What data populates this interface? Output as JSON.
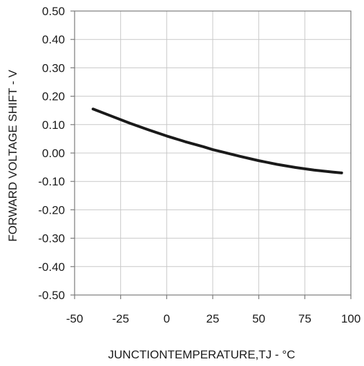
{
  "chart_data": {
    "type": "line",
    "title": "",
    "xlabel": "JUNCTIONTEMPERATURE,TJ - °C",
    "ylabel": "FORWARD VOLTAGE SHIFT - V",
    "xlim": [
      -50,
      100
    ],
    "ylim": [
      -0.5,
      0.5
    ],
    "x_ticks": [
      -50,
      -25,
      0,
      25,
      50,
      75,
      100
    ],
    "x_tick_labels": [
      "-50",
      "-25",
      "0",
      "25",
      "50",
      "75",
      "100"
    ],
    "y_ticks": [
      0.5,
      0.4,
      0.3,
      0.2,
      0.1,
      0.0,
      -0.1,
      -0.2,
      -0.3,
      -0.4,
      -0.5
    ],
    "y_tick_labels": [
      "0.50",
      "0.40",
      "0.30",
      "0.20",
      "0.10",
      "0.00",
      "-0.10",
      "-0.20",
      "-0.30",
      "-0.40",
      "-0.50"
    ],
    "grid": true,
    "legend": "none",
    "series": [
      {
        "color": "#1a1a1a",
        "x": [
          -40,
          -30,
          -20,
          -10,
          0,
          10,
          20,
          25,
          30,
          40,
          50,
          60,
          70,
          80,
          90,
          95
        ],
        "y": [
          0.155,
          0.13,
          0.105,
          0.082,
          0.06,
          0.04,
          0.022,
          0.012,
          0.004,
          -0.012,
          -0.027,
          -0.04,
          -0.051,
          -0.06,
          -0.067,
          -0.07
        ]
      }
    ]
  }
}
